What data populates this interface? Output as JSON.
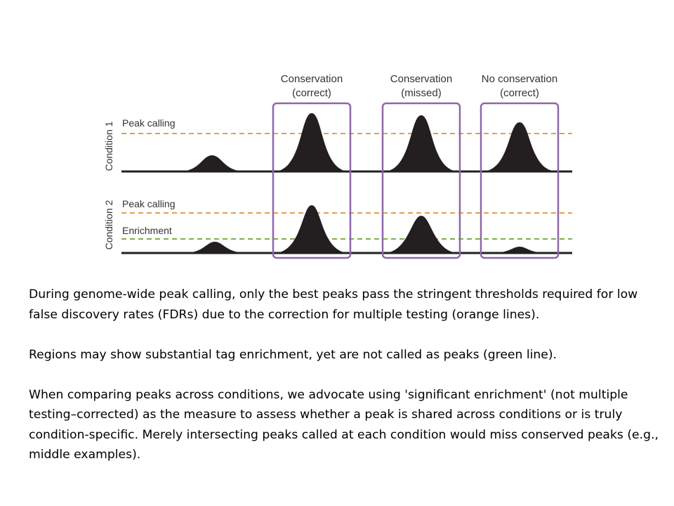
{
  "figure": {
    "columns": [
      {
        "line1": "Conservation",
        "line2": "(correct)"
      },
      {
        "line1": "Conservation",
        "line2": "(missed)"
      },
      {
        "line1": "No conservation",
        "line2": "(correct)"
      }
    ],
    "conditions": [
      {
        "label": "Condition 1",
        "threshold_labels": [
          "Peak calling"
        ]
      },
      {
        "label": "Condition 2",
        "threshold_labels": [
          "Peak calling",
          "Enrichment"
        ]
      }
    ],
    "colors": {
      "peak_calling_line": "#e0a050",
      "enrichment_line": "#7fae48",
      "box": "#8e67a8",
      "peak_fill": "#231f20"
    }
  },
  "caption": {
    "paragraphs": [
      "During genome-wide peak calling, only the best peaks pass the stringent thresholds required for low false discovery rates (FDRs) due to the correction for multiple testing (orange lines).",
      "Regions may show substantial tag enrichment, yet are not called as peaks (green line).",
      "When comparing peaks across conditions, we advocate using 'significant enrichment' (not multiple testing–corrected) as the measure to assess whether a peak is shared across conditions or is truly condition-specific. Merely intersecting peaks called at each condition would miss conserved peaks (e.g., middle examples)."
    ]
  }
}
